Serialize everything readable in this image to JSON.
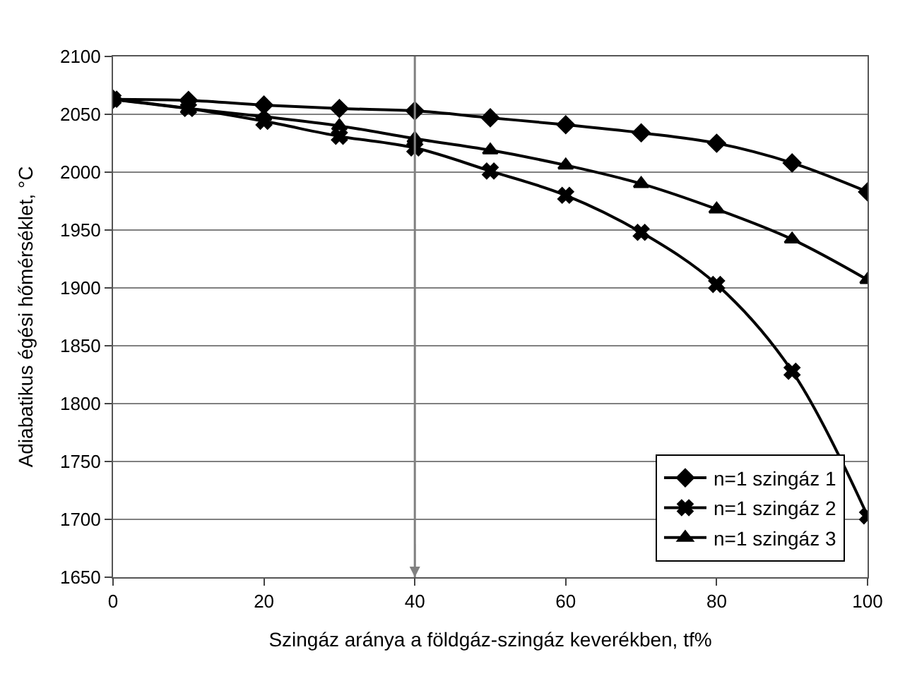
{
  "chart_data": {
    "type": "line",
    "xlabel": "Szingáz aránya a földgáz-szingáz keverékben, tf%",
    "ylabel": "Adiabatikus égési hőmérséklet, °C",
    "x": [
      0,
      10,
      20,
      30,
      40,
      50,
      60,
      70,
      80,
      90,
      100
    ],
    "series": [
      {
        "name": "n=1 szingáz 1",
        "color": "#000000",
        "marker": "diamond",
        "values": [
          2063,
          2062,
          2058,
          2055,
          2053,
          2047,
          2041,
          2034,
          2025,
          2008,
          1983
        ]
      },
      {
        "name": "n=1 szingáz 2",
        "color": "#000000",
        "marker": "cross",
        "values": [
          2063,
          2055,
          2044,
          2031,
          2021,
          2001,
          1980,
          1948,
          1903,
          1828,
          1703
        ]
      },
      {
        "name": "n=1 szingáz 3",
        "color": "#000000",
        "marker": "triangle",
        "values": [
          2063,
          2055,
          2048,
          2040,
          2029,
          2019,
          2006,
          1990,
          1968,
          1942,
          1907
        ]
      }
    ],
    "xlim": [
      0,
      100
    ],
    "xticks": [
      0,
      20,
      40,
      60,
      80,
      100
    ],
    "ylim": [
      1650,
      2100
    ],
    "yticks": [
      1650,
      1700,
      1750,
      1800,
      1850,
      1900,
      1950,
      2000,
      2050,
      2100
    ],
    "ref_lines": [
      {
        "axis": "x",
        "value": 40,
        "color": "#808080"
      }
    ],
    "grid": "y",
    "legend": "bottom right"
  }
}
